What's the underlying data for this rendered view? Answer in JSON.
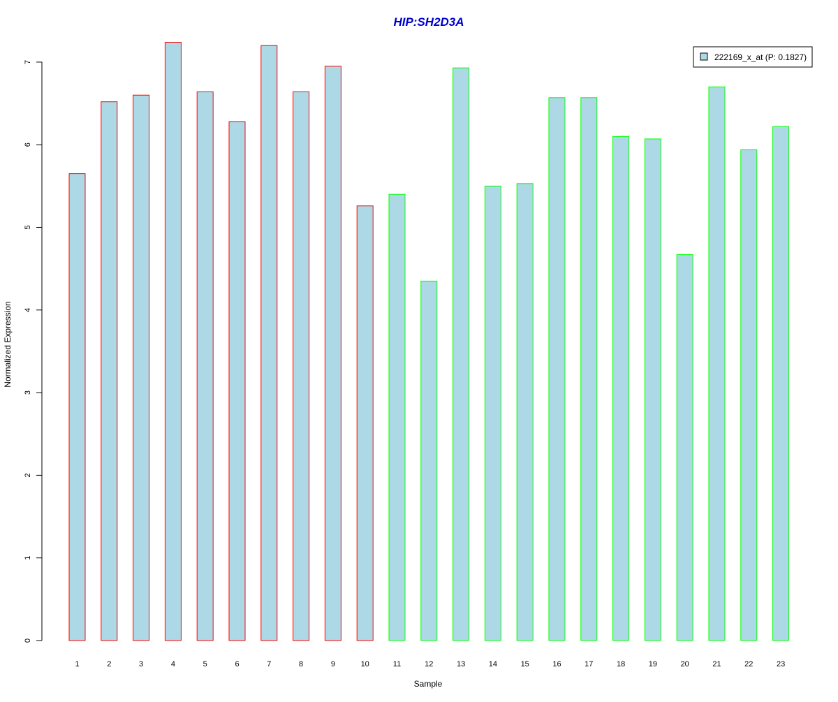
{
  "chart_data": {
    "type": "bar",
    "title": "HIP:SH2D3A",
    "xlabel": "Sample",
    "ylabel": "Normalized Expression",
    "categories": [
      "1",
      "2",
      "3",
      "4",
      "5",
      "6",
      "7",
      "8",
      "9",
      "10",
      "11",
      "12",
      "13",
      "14",
      "15",
      "16",
      "17",
      "18",
      "19",
      "20",
      "21",
      "22",
      "23"
    ],
    "series": [
      {
        "name": "222169_x_at (P: 0.1827)",
        "values": [
          5.65,
          6.52,
          6.6,
          7.24,
          6.64,
          6.28,
          7.2,
          6.64,
          6.95,
          5.26,
          5.4,
          4.35,
          6.93,
          5.5,
          5.53,
          6.57,
          6.57,
          6.1,
          6.07,
          4.67,
          6.7,
          5.94,
          6.22
        ]
      }
    ],
    "groups": [
      {
        "samples": [
          1,
          2,
          3,
          4,
          5,
          6,
          7,
          8,
          9,
          10
        ],
        "border_color": "#ff0000"
      },
      {
        "samples": [
          11,
          12,
          13,
          14,
          15,
          16,
          17,
          18,
          19,
          20,
          21,
          22,
          23
        ],
        "border_color": "#00ff00"
      }
    ],
    "y_ticks": [
      "0",
      "1",
      "2",
      "3",
      "4",
      "5",
      "6",
      "7"
    ],
    "ylim": [
      0,
      7.25
    ],
    "legend_position": "top-right",
    "grid": false,
    "colors": {
      "bar_fill": "#add8e6",
      "title": "#0000cd"
    }
  }
}
